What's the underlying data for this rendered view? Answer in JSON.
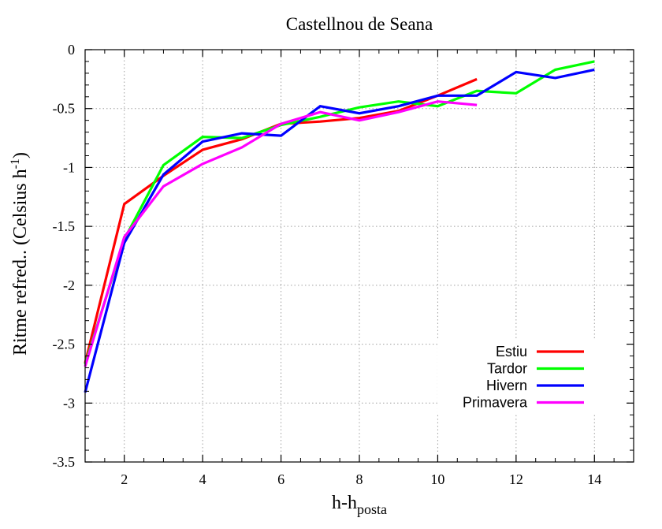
{
  "chart_data": {
    "type": "line",
    "title": "Castellnou de Seana",
    "xlabel_main": "h-h",
    "xlabel_sub": "posta",
    "ylabel_main": "Ritme refred.. (Celsius h",
    "ylabel_sup": "-1",
    "ylabel_close": ")",
    "xlim": [
      1,
      15
    ],
    "ylim": [
      -3.5,
      0
    ],
    "grid": true,
    "legend_position": "bottom-right",
    "xticks": [
      2,
      4,
      6,
      8,
      10,
      12,
      14
    ],
    "xtick_labels": [
      "2",
      "4",
      "6",
      "8",
      "10",
      "12",
      "14"
    ],
    "yticks": [
      0,
      -0.5,
      -1,
      -1.5,
      -2,
      -2.5,
      -3,
      -3.5
    ],
    "ytick_labels": [
      "0",
      "-0.5",
      "-1",
      "-1.5",
      "-2",
      "-2.5",
      "-3",
      "-3.5"
    ],
    "series": [
      {
        "name": "Estiu",
        "color": "#ff0000",
        "x": [
          1,
          2,
          3,
          4,
          5,
          6,
          7,
          8,
          9,
          10,
          11
        ],
        "y": [
          -2.66,
          -1.31,
          -1.07,
          -0.85,
          -0.76,
          -0.63,
          -0.61,
          -0.58,
          -0.52,
          -0.39,
          -0.25
        ]
      },
      {
        "name": "Tardor",
        "color": "#00ff00",
        "x": [
          1,
          2,
          3,
          4,
          5,
          6,
          7,
          8,
          9,
          10,
          11,
          12,
          13,
          14
        ],
        "y": [
          -2.67,
          -1.61,
          -0.98,
          -0.74,
          -0.75,
          -0.64,
          -0.57,
          -0.49,
          -0.44,
          -0.48,
          -0.35,
          -0.37,
          -0.17,
          -0.1
        ]
      },
      {
        "name": "Hivern",
        "color": "#0000ff",
        "x": [
          1,
          2,
          3,
          4,
          5,
          6,
          7,
          8,
          9,
          10,
          11,
          12,
          13,
          14
        ],
        "y": [
          -2.91,
          -1.64,
          -1.06,
          -0.78,
          -0.71,
          -0.73,
          -0.48,
          -0.54,
          -0.48,
          -0.39,
          -0.39,
          -0.19,
          -0.24,
          -0.17
        ]
      },
      {
        "name": "Primavera",
        "color": "#ff00ff",
        "x": [
          1,
          2,
          3,
          4,
          5,
          6,
          7,
          8,
          9,
          10,
          11
        ],
        "y": [
          -2.69,
          -1.59,
          -1.16,
          -0.97,
          -0.83,
          -0.63,
          -0.53,
          -0.6,
          -0.53,
          -0.44,
          -0.47
        ]
      }
    ]
  }
}
